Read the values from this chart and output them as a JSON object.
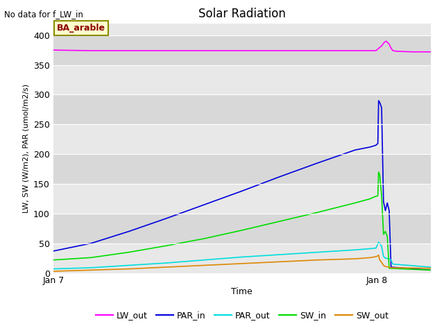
{
  "title": "Solar Radiation",
  "xlabel": "Time",
  "ylabel": "LW, SW (W/m2), PAR (umol/m2/s)",
  "note": "No data for f_LW_in",
  "legend_label": "BA_arable",
  "plot_bg_color": "#e8e8e8",
  "plot_bg_alt_color": "#d8d8d8",
  "ylim": [
    0,
    420
  ],
  "yticks": [
    0,
    50,
    100,
    150,
    200,
    250,
    300,
    350,
    400
  ],
  "xlim": [
    0,
    1.0
  ],
  "xtick_pos": [
    0.0,
    0.857
  ],
  "xtick_labels": [
    "Jan 7",
    "Jan 8"
  ],
  "series": {
    "LW_out": {
      "color": "#ff00ff",
      "points": [
        [
          0.0,
          375
        ],
        [
          0.1,
          374
        ],
        [
          0.2,
          374
        ],
        [
          0.3,
          374
        ],
        [
          0.4,
          374
        ],
        [
          0.5,
          374
        ],
        [
          0.6,
          374
        ],
        [
          0.7,
          374
        ],
        [
          0.8,
          374
        ],
        [
          0.83,
          374
        ],
        [
          0.84,
          374
        ],
        [
          0.85,
          374
        ],
        [
          0.855,
          374
        ],
        [
          0.857,
          375
        ],
        [
          0.862,
          378
        ],
        [
          0.87,
          382
        ],
        [
          0.877,
          388
        ],
        [
          0.882,
          390
        ],
        [
          0.89,
          385
        ],
        [
          0.895,
          378
        ],
        [
          0.9,
          374
        ],
        [
          0.91,
          373
        ],
        [
          0.95,
          372
        ],
        [
          1.0,
          372
        ]
      ]
    },
    "PAR_in": {
      "color": "#0000dd",
      "points": [
        [
          0.0,
          37
        ],
        [
          0.1,
          50
        ],
        [
          0.2,
          70
        ],
        [
          0.3,
          92
        ],
        [
          0.4,
          115
        ],
        [
          0.5,
          138
        ],
        [
          0.6,
          162
        ],
        [
          0.7,
          185
        ],
        [
          0.8,
          207
        ],
        [
          0.84,
          212
        ],
        [
          0.855,
          215
        ],
        [
          0.86,
          218
        ],
        [
          0.862,
          290
        ],
        [
          0.865,
          287
        ],
        [
          0.87,
          278
        ],
        [
          0.875,
          120
        ],
        [
          0.88,
          105
        ],
        [
          0.885,
          118
        ],
        [
          0.89,
          105
        ],
        [
          0.895,
          10
        ],
        [
          1.0,
          5
        ]
      ]
    },
    "PAR_out": {
      "color": "#00dddd",
      "points": [
        [
          0.0,
          7
        ],
        [
          0.1,
          9
        ],
        [
          0.2,
          13
        ],
        [
          0.3,
          17
        ],
        [
          0.4,
          22
        ],
        [
          0.5,
          27
        ],
        [
          0.6,
          31
        ],
        [
          0.7,
          35
        ],
        [
          0.8,
          39
        ],
        [
          0.84,
          41
        ],
        [
          0.855,
          42
        ],
        [
          0.862,
          52
        ],
        [
          0.865,
          50
        ],
        [
          0.87,
          45
        ],
        [
          0.875,
          28
        ],
        [
          0.88,
          25
        ],
        [
          0.89,
          24
        ],
        [
          0.895,
          22
        ],
        [
          0.9,
          15
        ],
        [
          1.0,
          10
        ]
      ]
    },
    "SW_in": {
      "color": "#00dd00",
      "points": [
        [
          0.0,
          22
        ],
        [
          0.1,
          26
        ],
        [
          0.2,
          35
        ],
        [
          0.3,
          46
        ],
        [
          0.4,
          58
        ],
        [
          0.5,
          72
        ],
        [
          0.6,
          87
        ],
        [
          0.7,
          102
        ],
        [
          0.8,
          118
        ],
        [
          0.84,
          125
        ],
        [
          0.85,
          128
        ],
        [
          0.86,
          130
        ],
        [
          0.862,
          170
        ],
        [
          0.865,
          165
        ],
        [
          0.87,
          130
        ],
        [
          0.875,
          65
        ],
        [
          0.88,
          70
        ],
        [
          0.885,
          62
        ],
        [
          0.89,
          8
        ],
        [
          1.0,
          5
        ]
      ]
    },
    "SW_out": {
      "color": "#dd8800",
      "points": [
        [
          0.0,
          3
        ],
        [
          0.1,
          5
        ],
        [
          0.2,
          7
        ],
        [
          0.3,
          10
        ],
        [
          0.4,
          13
        ],
        [
          0.5,
          16
        ],
        [
          0.6,
          19
        ],
        [
          0.7,
          22
        ],
        [
          0.8,
          24
        ],
        [
          0.84,
          26
        ],
        [
          0.85,
          27
        ],
        [
          0.857,
          28
        ],
        [
          0.862,
          30
        ],
        [
          0.865,
          22
        ],
        [
          0.87,
          18
        ],
        [
          0.875,
          13
        ],
        [
          0.88,
          11
        ],
        [
          0.89,
          10
        ],
        [
          0.895,
          9
        ],
        [
          1.0,
          8
        ]
      ]
    }
  }
}
